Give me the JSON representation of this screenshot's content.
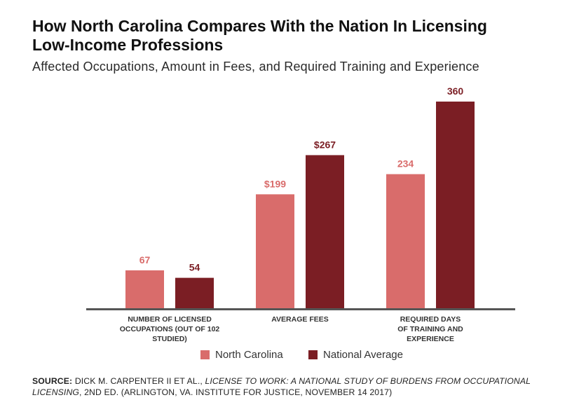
{
  "header": {
    "title_line1": "How North Carolina Compares With the Nation In Licensing",
    "title_line2": "Low-Income Professions",
    "subtitle": "Affected Occupations, Amount in Fees, and Required Training and Experience"
  },
  "chart_data": {
    "type": "bar",
    "title": "How North Carolina Compares With the Nation In Licensing Low-Income Professions",
    "subtitle": "Affected Occupations, Amount in Fees, and Required Training and Experience",
    "categories": [
      [
        "NUMBER OF LICENSED",
        "OCCUPATIONS (OUT OF 102",
        "STUDIED)"
      ],
      [
        "AVERAGE FEES"
      ],
      [
        "REQUIRED DAYS",
        "OF TRAINING AND",
        "EXPERIENCE"
      ]
    ],
    "series": [
      {
        "name": "North Carolina",
        "color": "#d96c6b",
        "values": [
          67,
          199,
          234
        ],
        "labels": [
          "67",
          "$199",
          "234"
        ]
      },
      {
        "name": "National Average",
        "color": "#7b1e24",
        "values": [
          54,
          267,
          360
        ],
        "labels": [
          "54",
          "$267",
          "360"
        ]
      }
    ],
    "xlabel": "",
    "ylabel": "",
    "ylim": [
      0,
      360
    ],
    "grid": false,
    "legend": "bottom-center"
  },
  "legend": {
    "items": [
      {
        "label": "North Carolina",
        "color": "#d96c6b"
      },
      {
        "label": "National Average",
        "color": "#7b1e24"
      }
    ]
  },
  "source": {
    "label": "SOURCE:",
    "authors": "DICK M. CARPENTER II ET AL.,",
    "work_title": "LICENSE TO WORK: A NATIONAL STUDY OF BURDENS FROM OCCUPATIONAL LICENSING",
    "details": ", 2ND ED. (ARLINGTON, VA. INSTITUTE FOR JUSTICE, NOVEMBER 14 2017)"
  }
}
